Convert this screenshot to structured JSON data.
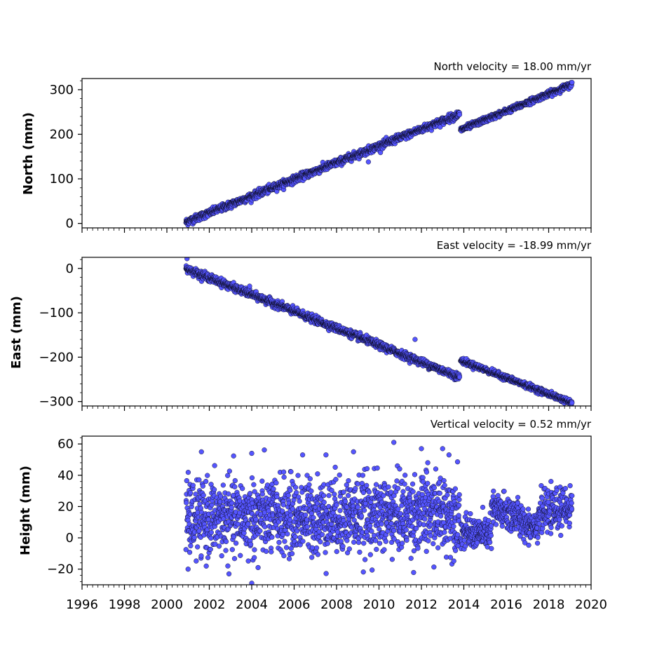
{
  "chart_data": [
    {
      "type": "scatter",
      "title": "North velocity = 18.00 mm/yr",
      "xlabel": "",
      "ylabel": "North (mm)",
      "xlim": [
        1996,
        2020
      ],
      "ylim": [
        -10,
        325
      ],
      "x_ticks": [
        1996,
        1998,
        2000,
        2002,
        2004,
        2006,
        2008,
        2010,
        2012,
        2014,
        2016,
        2018,
        2020
      ],
      "y_ticks": [
        0,
        100,
        200,
        300
      ],
      "y_tick_labels": [
        "0",
        "100",
        "200",
        "300"
      ],
      "marker_color": "#5555ff",
      "marker_edge": "#000000",
      "segments": [
        {
          "x_start": 2000.9,
          "x_end": 2013.8,
          "y_start": 3,
          "y_end": 245,
          "noise": 4
        },
        {
          "x_start": 2013.85,
          "x_end": 2019.1,
          "y_start": 210,
          "y_end": 312,
          "noise": 3
        }
      ],
      "outliers": [
        {
          "x": 2009.5,
          "y": 138
        }
      ]
    },
    {
      "type": "scatter",
      "title": "East velocity = -18.99 mm/yr",
      "xlabel": "",
      "ylabel": "East (mm)",
      "xlim": [
        1996,
        2020
      ],
      "ylim": [
        -310,
        25
      ],
      "x_ticks": [
        1996,
        1998,
        2000,
        2002,
        2004,
        2006,
        2008,
        2010,
        2012,
        2014,
        2016,
        2018,
        2020
      ],
      "y_ticks": [
        0,
        -100,
        -200,
        -300
      ],
      "y_tick_labels": [
        "0",
        "−100",
        "−200",
        "−300"
      ],
      "marker_color": "#5555ff",
      "marker_edge": "#000000",
      "segments": [
        {
          "x_start": 2000.9,
          "x_end": 2013.8,
          "y_start": 0,
          "y_end": -245,
          "noise": 4
        },
        {
          "x_start": 2013.85,
          "x_end": 2019.1,
          "y_start": -207,
          "y_end": -303,
          "noise": 3
        }
      ],
      "outliers": [
        {
          "x": 2000.95,
          "y": 22
        },
        {
          "x": 2011.7,
          "y": -160
        },
        {
          "x": 2003.9,
          "y": -40
        }
      ]
    },
    {
      "type": "scatter",
      "title": "Vertical velocity = 0.52 mm/yr",
      "xlabel": "",
      "ylabel": "Height (mm)",
      "xlim": [
        1996,
        2020
      ],
      "ylim": [
        -30,
        65
      ],
      "x_ticks": [
        1996,
        1998,
        2000,
        2002,
        2004,
        2006,
        2008,
        2010,
        2012,
        2014,
        2016,
        2018,
        2020
      ],
      "x_tick_labels": [
        "1996",
        "1998",
        "2000",
        "2002",
        "2004",
        "2006",
        "2008",
        "2010",
        "2012",
        "2014",
        "2016",
        "2018",
        "2020"
      ],
      "y_ticks": [
        -20,
        0,
        20,
        40,
        60
      ],
      "y_tick_labels": [
        "−20",
        "0",
        "20",
        "40",
        "60"
      ],
      "marker_color": "#5555ff",
      "marker_edge": "#000000",
      "segments": [
        {
          "x_start": 2000.9,
          "x_end": 2013.8,
          "y_start": 12,
          "y_end": 16,
          "noise": 12
        },
        {
          "x_start": 2013.85,
          "x_end": 2015.3,
          "y_start": 3,
          "y_end": 3,
          "noise": 5
        },
        {
          "x_start": 2015.3,
          "x_end": 2016.6,
          "y_start": 18,
          "y_end": 14,
          "noise": 6
        },
        {
          "x_start": 2016.6,
          "x_end": 2017.5,
          "y_start": 10,
          "y_end": 8,
          "noise": 5
        },
        {
          "x_start": 2017.5,
          "x_end": 2019.1,
          "y_start": 15,
          "y_end": 20,
          "noise": 6
        }
      ],
      "outliers": [
        {
          "x": 2010.7,
          "y": 61
        },
        {
          "x": 2004.0,
          "y": 54
        },
        {
          "x": 2008.8,
          "y": 55
        },
        {
          "x": 2012.0,
          "y": 57
        },
        {
          "x": 2013.0,
          "y": 57
        },
        {
          "x": 2004.0,
          "y": -29
        },
        {
          "x": 2001.0,
          "y": -20
        },
        {
          "x": 2004.3,
          "y": -19
        },
        {
          "x": 2006.4,
          "y": 53
        },
        {
          "x": 2007.5,
          "y": 53
        },
        {
          "x": 2012.3,
          "y": 48
        },
        {
          "x": 2013.3,
          "y": 53
        }
      ]
    }
  ]
}
